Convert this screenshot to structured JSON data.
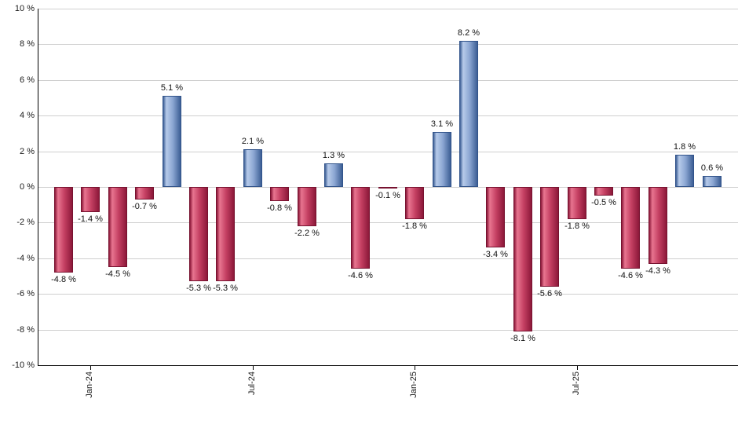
{
  "chart_data": {
    "type": "bar",
    "title": "",
    "xlabel": "",
    "ylabel": "",
    "unit": "%",
    "ylim": [
      -10,
      10
    ],
    "grid": true,
    "legend": "none",
    "bars": [
      {
        "value": -4.8,
        "label": "-4.8 %"
      },
      {
        "value": -1.4,
        "label": "-1.4 %"
      },
      {
        "value": -4.5,
        "label": "-4.5 %"
      },
      {
        "value": -0.7,
        "label": "-0.7 %"
      },
      {
        "value": 5.1,
        "label": "5.1 %"
      },
      {
        "value": -5.3,
        "label": "-5.3 %"
      },
      {
        "value": -5.3,
        "label": "-5.3 %"
      },
      {
        "value": 2.1,
        "label": "2.1 %"
      },
      {
        "value": -0.8,
        "label": "-0.8 %"
      },
      {
        "value": -2.2,
        "label": "-2.2 %"
      },
      {
        "value": 1.3,
        "label": "1.3 %"
      },
      {
        "value": -4.6,
        "label": "-4.6 %"
      },
      {
        "value": -0.1,
        "label": "-0.1 %"
      },
      {
        "value": -1.8,
        "label": "-1.8 %"
      },
      {
        "value": 3.1,
        "label": "3.1 %"
      },
      {
        "value": 8.2,
        "label": "8.2 %"
      },
      {
        "value": -3.4,
        "label": "-3.4 %"
      },
      {
        "value": -8.1,
        "label": "-8.1 %"
      },
      {
        "value": -5.6,
        "label": "-5.6 %"
      },
      {
        "value": -1.8,
        "label": "-1.8 %"
      },
      {
        "value": -0.5,
        "label": "-0.5 %"
      },
      {
        "value": -4.6,
        "label": "-4.6 %"
      },
      {
        "value": -4.3,
        "label": "-4.3 %"
      },
      {
        "value": 1.8,
        "label": "1.8 %"
      },
      {
        "value": 0.6,
        "label": "0.6 %"
      }
    ],
    "y_ticks": [
      {
        "value": 10,
        "label": "10 %"
      },
      {
        "value": 8,
        "label": "8 %"
      },
      {
        "value": 6,
        "label": "6 %"
      },
      {
        "value": 4,
        "label": "4 %"
      },
      {
        "value": 2,
        "label": "2 %"
      },
      {
        "value": 0,
        "label": "0 %"
      },
      {
        "value": -2,
        "label": "-2 %"
      },
      {
        "value": -4,
        "label": "-4 %"
      },
      {
        "value": -6,
        "label": "-6 %"
      },
      {
        "value": -8,
        "label": "-8 %"
      },
      {
        "value": -10,
        "label": "-10 %"
      }
    ],
    "x_ticks": [
      {
        "bar_index": 1,
        "label": "Jan-24"
      },
      {
        "bar_index": 7,
        "label": "Jul-24"
      },
      {
        "bar_index": 13,
        "label": "Jan-25"
      },
      {
        "bar_index": 19,
        "label": "Jul-25"
      }
    ],
    "colors": {
      "positive": {
        "edge": "#3c5e95",
        "highlight": "#b7cbea",
        "mid": "#8ba6d2",
        "border": "#31538a"
      },
      "negative": {
        "edge": "#8c1839",
        "highlight": "#e87590",
        "mid": "#c43f62",
        "border": "#771230"
      },
      "grid": "#cfcfcf",
      "axis": "#000000",
      "label_text": "#111111"
    }
  }
}
